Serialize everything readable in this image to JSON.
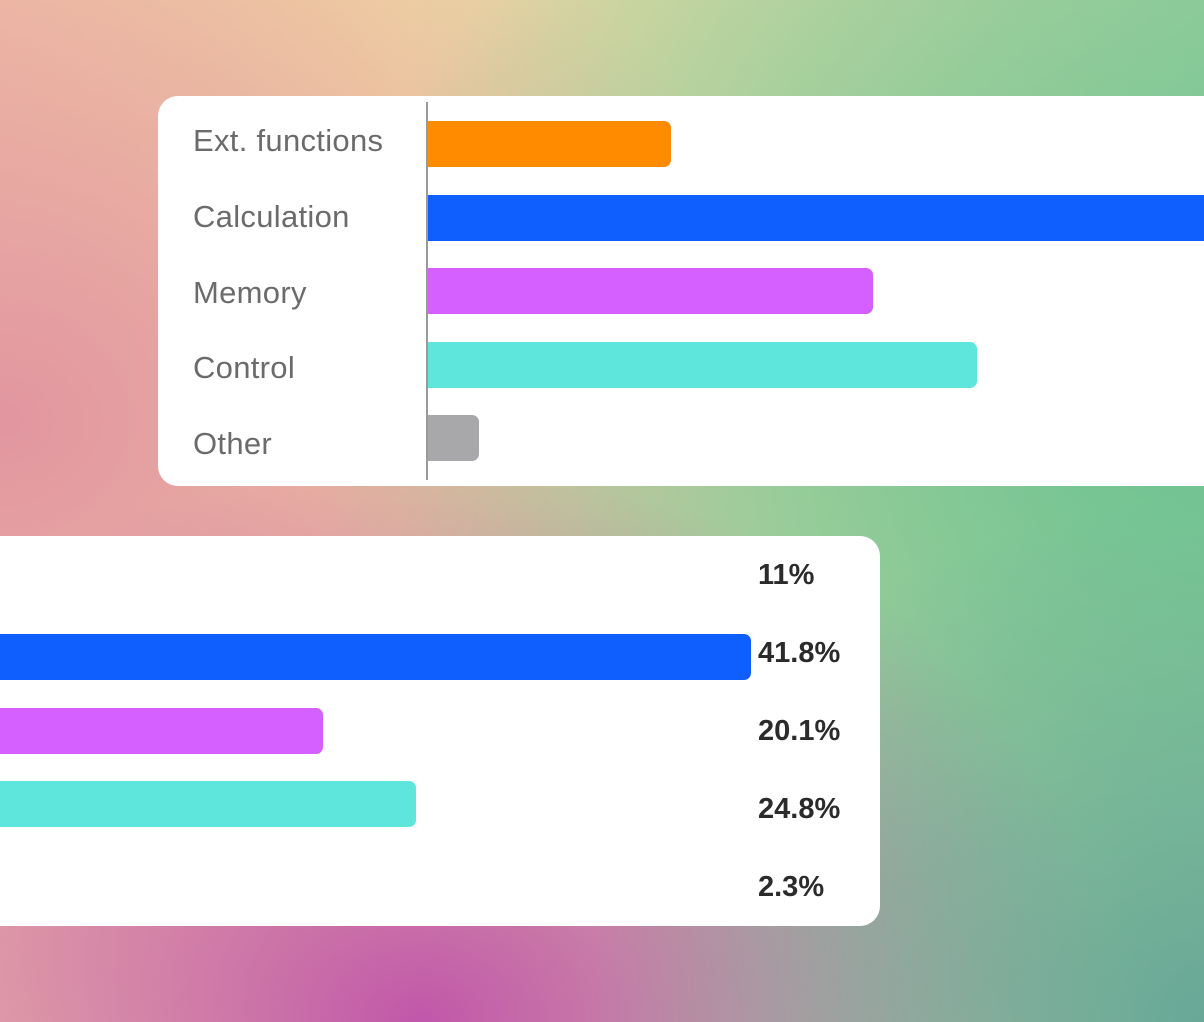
{
  "chart_data": [
    {
      "type": "bar",
      "orientation": "horizontal",
      "categories": [
        "Ext. functions",
        "Calculation",
        "Memory",
        "Control",
        "Other"
      ],
      "values": [
        11,
        41.8,
        20.1,
        24.8,
        2.3
      ],
      "colors": [
        "#ff8c00",
        "#0f5fff",
        "#d660ff",
        "#5ee6dc",
        "#a8a7aa"
      ],
      "grid": false
    },
    {
      "type": "bar",
      "orientation": "horizontal",
      "categories": [
        "Ext. functions",
        "Calculation",
        "Memory",
        "Control",
        "Other"
      ],
      "values": [
        11,
        41.8,
        20.1,
        24.8,
        2.3
      ],
      "value_labels": [
        "11%",
        "41.8%",
        "20.1%",
        "24.8%",
        "2.3%"
      ],
      "colors": [
        "#ff8c00",
        "#0f5fff",
        "#d660ff",
        "#5ee6dc",
        "#a8a7aa"
      ],
      "grid": false
    }
  ]
}
